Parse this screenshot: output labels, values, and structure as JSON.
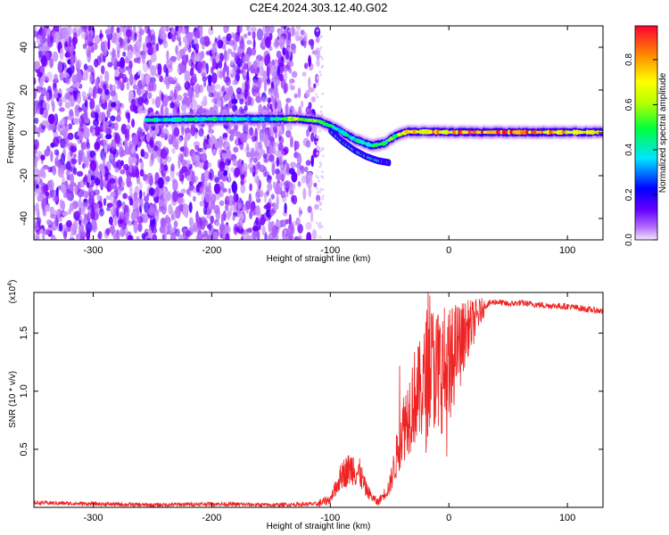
{
  "figure_title": "C2E4.2024.303.12.40.G02",
  "chart_data": [
    {
      "type": "heatmap",
      "title": "C2E4.2024.303.12.40.G02",
      "xlabel": "Height of straight line (km)",
      "ylabel": "Frequency (Hz)",
      "xlim": [
        -350,
        130
      ],
      "ylim": [
        -50,
        50
      ],
      "x_ticks": [
        -300,
        -200,
        -100,
        0,
        100
      ],
      "y_ticks": [
        -40,
        -20,
        0,
        20,
        40
      ],
      "grid": false,
      "colorbar": {
        "label": "Normalized spectral amplitude",
        "range": [
          0.0,
          0.95
        ],
        "ticks": [
          0.0,
          0.2,
          0.4,
          0.6,
          0.8
        ],
        "colormap": [
          "#f3e6fb",
          "#7a00ff",
          "#0000ff",
          "#00e5ff",
          "#00ff3c",
          "#b8ff00",
          "#ffff00",
          "#ff8c00",
          "#ff0033"
        ]
      },
      "features": {
        "noise_region_x": [
          -350,
          -110
        ],
        "carrier_line": {
          "x": [
            -255,
            -200,
            -150,
            -128,
            -110,
            -95,
            -80,
            -65,
            -55,
            -45,
            -35,
            -20,
            0,
            50,
            130
          ],
          "y": [
            6.0,
            6.5,
            6.5,
            6.5,
            5.5,
            2.0,
            -3.0,
            -6.0,
            -5.0,
            -1.5,
            0.5,
            0.5,
            0.3,
            0.3,
            0.3
          ],
          "amplitude": [
            0.45,
            0.45,
            0.4,
            0.7,
            0.55,
            0.45,
            0.45,
            0.5,
            0.5,
            0.6,
            0.75,
            0.85,
            0.9,
            0.95,
            0.75
          ]
        },
        "secondary_line": {
          "x": [
            -100,
            -90,
            -80,
            -70,
            -60,
            -50
          ],
          "y": [
            1.0,
            -4.0,
            -8.0,
            -11.0,
            -13.0,
            -14.0
          ]
        }
      }
    },
    {
      "type": "line",
      "xlabel": "Height of straight line (km)",
      "ylabel": "SNR (10 * v/v)",
      "y_multiplier": "(x10",
      "y_multiplier_exp": "4",
      "y_multiplier_close": ")",
      "xlim": [
        -350,
        130
      ],
      "ylim": [
        0,
        18500
      ],
      "x_ticks": [
        -300,
        -200,
        -100,
        0,
        100
      ],
      "y_ticks": [
        5000,
        10000,
        15000
      ],
      "y_tick_labels": [
        "0.5",
        "1.0",
        "1.5"
      ],
      "grid": false,
      "line_color": "#ee2222",
      "series": [
        {
          "x": [
            -350,
            -300,
            -250,
            -200,
            -150,
            -110,
            -100,
            -95,
            -90,
            -85,
            -80,
            -78,
            -75,
            -70,
            -65,
            -60,
            -55,
            -50,
            -45,
            -40,
            -35,
            -30,
            -25,
            -20,
            -15,
            -10,
            -5,
            0,
            5,
            10,
            15,
            20,
            25,
            30,
            35,
            40,
            50,
            60,
            80,
            100,
            120,
            130
          ],
          "y": [
            400,
            300,
            200,
            300,
            200,
            300,
            700,
            1800,
            2900,
            3200,
            3500,
            3000,
            2900,
            1600,
            900,
            400,
            1100,
            1800,
            4000,
            6500,
            7800,
            9400,
            9800,
            10800,
            12500,
            11600,
            12000,
            10300,
            13600,
            14100,
            15300,
            15800,
            16600,
            17300,
            17600,
            17700,
            17500,
            17600,
            17400,
            17300,
            17000,
            16900
          ]
        }
      ]
    }
  ]
}
